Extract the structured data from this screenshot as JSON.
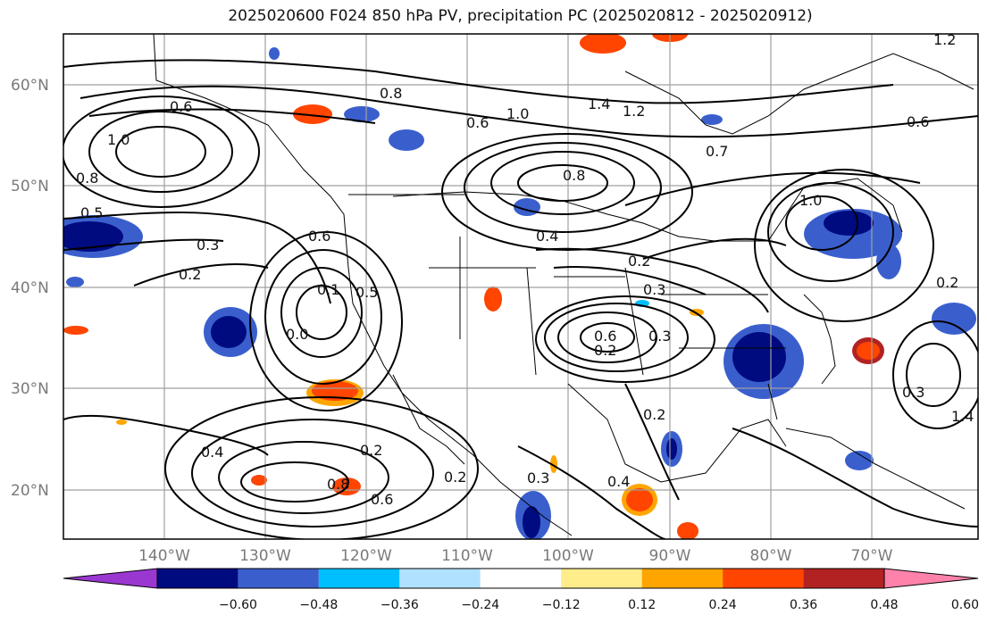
{
  "title": "2025020600 F024 850 hPa PV, precipitation PC (2025020812 - 2025020912)",
  "lat_labels": [
    "60°N",
    "50°N",
    "40°N",
    "30°N",
    "20°N"
  ],
  "lon_labels": [
    "140°W",
    "130°W",
    "120°W",
    "110°W",
    "100°W",
    "90°W",
    "80°W",
    "70°W"
  ],
  "colorbar": {
    "ticks": [
      "−0.60",
      "−0.48",
      "−0.36",
      "−0.24",
      "−0.12",
      "0.12",
      "0.24",
      "0.36",
      "0.48",
      "0.60"
    ],
    "colors": [
      "#9a37d1",
      "#000b80",
      "#3a5fcd",
      "#00bfff",
      "#b0e2ff",
      "#ffffff",
      "#ffec8b",
      "#ffa500",
      "#ff4500",
      "#b22222",
      "#ff82ab"
    ]
  },
  "contour_labels": [
    "0.6",
    "1.0",
    "0.8",
    "0.5",
    "0.3",
    "0.2",
    "0.8",
    "0.6",
    "1.0",
    "1.4",
    "1.2",
    "0.8",
    "0.7",
    "1.0",
    "0.4",
    "0.2",
    "0.3",
    "0.1",
    "0.0",
    "0.5",
    "0.6",
    "0.4",
    "0.2",
    "0.8",
    "0.6",
    "0.2",
    "0.3",
    "0.6",
    "0.2",
    "0.3",
    "0.2",
    "0.4",
    "0.2",
    "0.3",
    "1.4",
    "1.2",
    "0.6"
  ]
}
